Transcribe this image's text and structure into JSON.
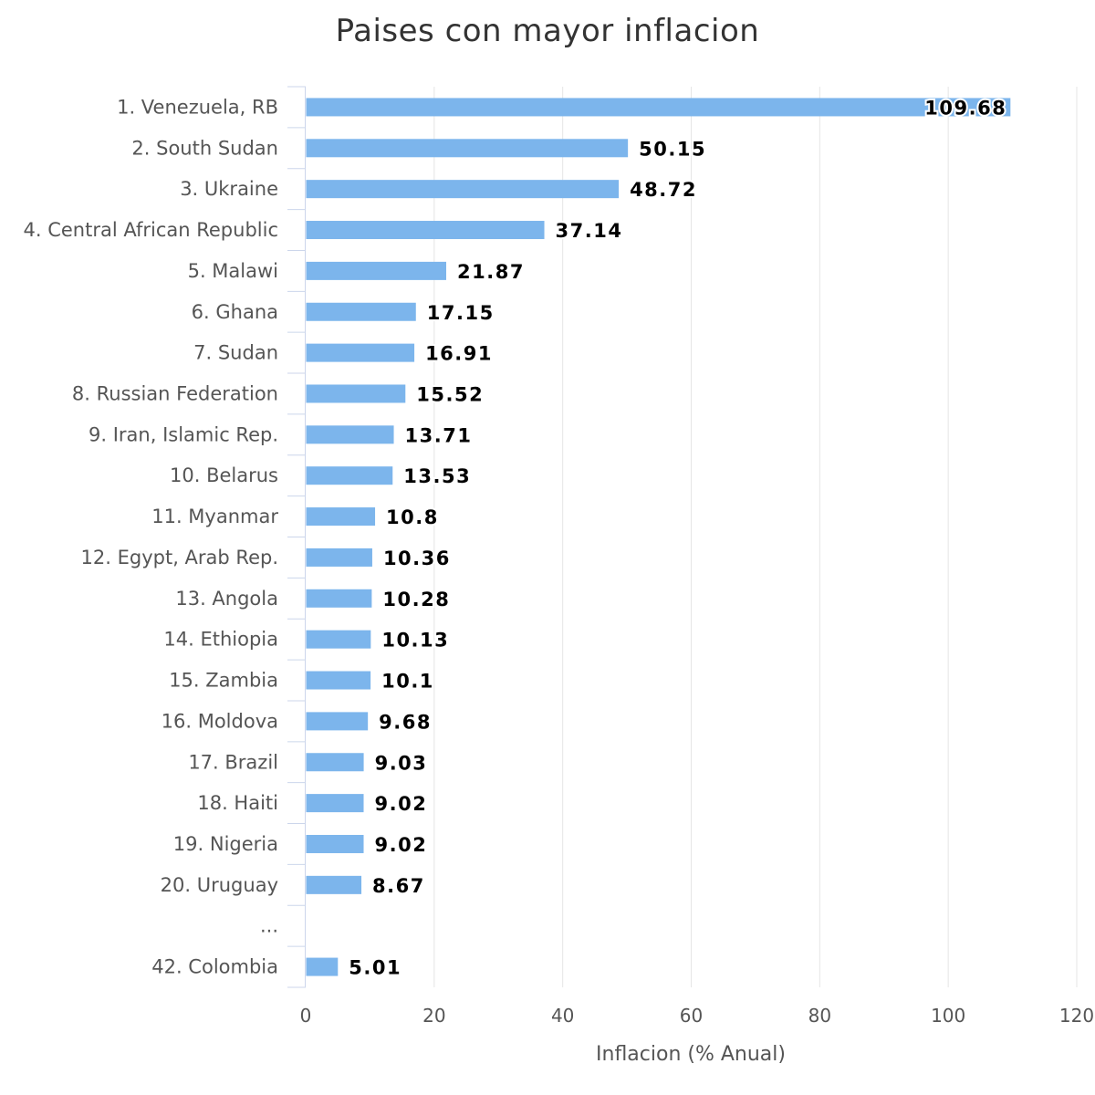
{
  "chart_data": {
    "type": "bar",
    "orientation": "horizontal",
    "title": "Paises con mayor inflacion",
    "xlabel": "Inflacion (% Anual)",
    "ylabel": "",
    "xlim": [
      0,
      120
    ],
    "x_ticks": [
      "0",
      "20",
      "40",
      "60",
      "80",
      "100",
      "120"
    ],
    "grid": true,
    "legend": "none",
    "bar_color": "#7cb5ec",
    "categories": [
      "1. Venezuela, RB",
      "2. South Sudan",
      "3. Ukraine",
      "4. Central African Republic",
      "5. Malawi",
      "6. Ghana",
      "7. Sudan",
      "8. Russian Federation",
      "9. Iran, Islamic Rep.",
      "10. Belarus",
      "11. Myanmar",
      "12. Egypt, Arab Rep.",
      "13. Angola",
      "14. Ethiopia",
      "15. Zambia",
      "16. Moldova",
      "17. Brazil",
      "18. Haiti",
      "19. Nigeria",
      "20. Uruguay",
      "...",
      "42. Colombia"
    ],
    "values": [
      109.68,
      50.15,
      48.72,
      37.14,
      21.87,
      17.15,
      16.91,
      15.52,
      13.71,
      13.53,
      10.8,
      10.36,
      10.28,
      10.13,
      10.1,
      9.68,
      9.03,
      9.02,
      9.02,
      8.67,
      null,
      5.01
    ],
    "data_labels": [
      "109.68",
      "50.15",
      "48.72",
      "37.14",
      "21.87",
      "17.15",
      "16.91",
      "15.52",
      "13.71",
      "13.53",
      "10.8",
      "10.36",
      "10.28",
      "10.13",
      "10.1",
      "9.68",
      "9.03",
      "9.02",
      "9.02",
      "8.67",
      "",
      "5.01"
    ]
  }
}
